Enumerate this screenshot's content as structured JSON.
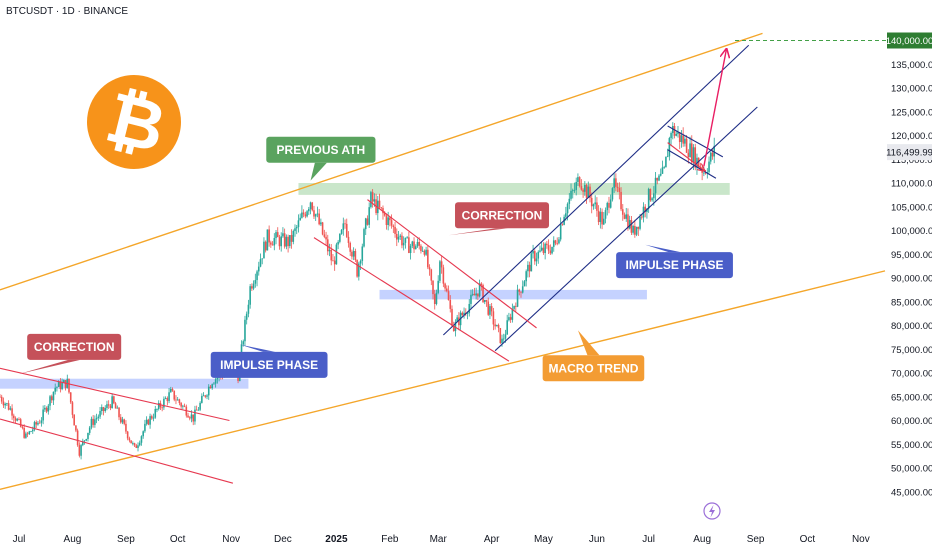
{
  "header": {
    "symbol_label": "BTCUSDT · 1D · BINANCE"
  },
  "colors": {
    "up": "#26a69a",
    "down": "#ef5350",
    "orange": "#f7931a",
    "orange_line": "#f4a62a",
    "navy": "#1f2e86",
    "red_line": "#e63950",
    "magenta": "#e91e63",
    "zone_green": "#a5d6a7",
    "zone_blue": "#9fb4ff",
    "label_red": "#c5515a",
    "label_green": "#5aa35f",
    "label_blue": "#4a5ec8",
    "label_orange": "#f39c33",
    "target_line": "#43a047",
    "target_badge": "#2e7d32"
  },
  "chart_data": {
    "type": "candlestick",
    "symbol": "BTCUSDT",
    "interval": "1D",
    "exchange": "BINANCE",
    "y_axis": {
      "scale": "linear",
      "ylim": [
        42000,
        146000
      ],
      "ticks": [
        45000,
        50000,
        55000,
        60000,
        65000,
        70000,
        75000,
        80000,
        85000,
        90000,
        95000,
        100000,
        105000,
        110000,
        115000,
        120000,
        125000,
        130000,
        135000
      ],
      "tick_labels": [
        "45,000.00",
        "50,000.00",
        "55,000.00",
        "60,000.00",
        "65,000.00",
        "70,000.00",
        "75,000.00",
        "80,000.00",
        "85,000.00",
        "90,000.00",
        "95,000.00",
        "100,000.00",
        "105,000.00",
        "110,000.00",
        "115,000.00",
        "120,000.00",
        "125,000.00",
        "130,000.00",
        "135,000.00"
      ]
    },
    "x_axis": {
      "range": [
        "2024-06-20",
        "2025-11-15"
      ],
      "tick_dates": [
        "2024-07-01",
        "2024-08-01",
        "2024-09-01",
        "2024-10-01",
        "2024-11-01",
        "2024-12-01",
        "2025-01-01",
        "2025-02-01",
        "2025-03-01",
        "2025-04-01",
        "2025-05-01",
        "2025-06-01",
        "2025-07-01",
        "2025-08-01",
        "2025-09-01",
        "2025-10-01",
        "2025-11-01"
      ],
      "tick_labels": [
        "Jul",
        "Aug",
        "Sep",
        "Oct",
        "Nov",
        "Dec",
        "2025",
        "Feb",
        "Mar",
        "Apr",
        "May",
        "Jun",
        "Jul",
        "Aug",
        "Sep",
        "Oct",
        "Nov"
      ]
    },
    "price_path": [
      [
        "2024-06-20",
        65000
      ],
      [
        "2024-06-27",
        62000
      ],
      [
        "2024-07-05",
        56500
      ],
      [
        "2024-07-14",
        60500
      ],
      [
        "2024-07-22",
        67000
      ],
      [
        "2024-07-29",
        68000
      ],
      [
        "2024-08-05",
        53500
      ],
      [
        "2024-08-12",
        59500
      ],
      [
        "2024-08-24",
        64000
      ],
      [
        "2024-09-06",
        54000
      ],
      [
        "2024-09-14",
        60000
      ],
      [
        "2024-09-27",
        65800
      ],
      [
        "2024-10-10",
        60500
      ],
      [
        "2024-10-21",
        68500
      ],
      [
        "2024-10-31",
        70500
      ],
      [
        "2024-11-05",
        69500
      ],
      [
        "2024-11-12",
        88000
      ],
      [
        "2024-11-22",
        98500
      ],
      [
        "2024-12-05",
        97500
      ],
      [
        "2024-12-17",
        106500
      ],
      [
        "2024-12-30",
        93000
      ],
      [
        "2025-01-06",
        101500
      ],
      [
        "2025-01-13",
        91500
      ],
      [
        "2025-01-21",
        106500
      ],
      [
        "2025-01-31",
        102000
      ],
      [
        "2025-02-10",
        97000
      ],
      [
        "2025-02-21",
        96500
      ],
      [
        "2025-02-27",
        84000
      ],
      [
        "2025-03-02",
        94000
      ],
      [
        "2025-03-10",
        79500
      ],
      [
        "2025-03-25",
        88000
      ],
      [
        "2025-04-07",
        76500
      ],
      [
        "2025-04-14",
        84500
      ],
      [
        "2025-04-25",
        94500
      ],
      [
        "2025-05-08",
        97000
      ],
      [
        "2025-05-13",
        104000
      ],
      [
        "2025-05-22",
        111000
      ],
      [
        "2025-06-05",
        101500
      ],
      [
        "2025-06-10",
        110000
      ],
      [
        "2025-06-22",
        99500
      ],
      [
        "2025-07-01",
        107000
      ],
      [
        "2025-07-10",
        112000
      ],
      [
        "2025-07-14",
        121500
      ],
      [
        "2025-07-22",
        118500
      ],
      [
        "2025-08-02",
        112500
      ],
      [
        "2025-08-08",
        116500
      ]
    ],
    "current_price": 116499.99,
    "current_price_label": "116,499.99",
    "target_price": 140000,
    "target_label": "140,000.00",
    "zones": [
      {
        "name": "previous-ath-zone",
        "color": "zone_green",
        "from": "2024-12-10",
        "to": "2025-08-17",
        "low": 107500,
        "high": 110000
      },
      {
        "name": "support-zone-mid",
        "color": "zone_blue",
        "from": "2025-01-26",
        "to": "2025-06-30",
        "low": 85500,
        "high": 87500
      },
      {
        "name": "support-zone-low",
        "color": "zone_blue",
        "from": "2024-06-20",
        "to": "2024-11-11",
        "low": 66700,
        "high": 68800
      }
    ],
    "lines": [
      {
        "name": "macro-trend-upper",
        "color": "orange_line",
        "from": [
          "2024-06-20",
          87500
        ],
        "to": [
          "2025-09-05",
          141500
        ]
      },
      {
        "name": "macro-trend-lower",
        "color": "orange_line",
        "from": [
          "2024-06-20",
          45500
        ],
        "to": [
          "2025-11-15",
          91500
        ]
      },
      {
        "name": "impulse-channel-upper",
        "color": "navy",
        "from": [
          "2025-03-04",
          78000
        ],
        "to": [
          "2025-08-28",
          139000
        ]
      },
      {
        "name": "impulse-channel-lower",
        "color": "navy",
        "from": [
          "2025-04-03",
          74700
        ],
        "to": [
          "2025-09-02",
          126000
        ]
      },
      {
        "name": "correction-1-upper",
        "color": "red_line",
        "from": [
          "2024-06-20",
          71000
        ],
        "to": [
          "2024-10-31",
          60000
        ]
      },
      {
        "name": "correction-1-lower",
        "color": "red_line",
        "from": [
          "2024-06-20",
          60300
        ],
        "to": [
          "2024-11-02",
          46800
        ]
      },
      {
        "name": "correction-2-upper",
        "color": "red_line",
        "from": [
          "2025-01-19",
          106500
        ],
        "to": [
          "2025-04-27",
          79500
        ]
      },
      {
        "name": "correction-2-lower",
        "color": "red_line",
        "from": [
          "2024-12-19",
          98500
        ],
        "to": [
          "2025-04-11",
          72500
        ]
      },
      {
        "name": "flag-upper",
        "color": "navy",
        "from": [
          "2025-07-12",
          122000
        ],
        "to": [
          "2025-08-13",
          115500
        ]
      },
      {
        "name": "flag-lower",
        "color": "navy",
        "from": [
          "2025-07-12",
          117000
        ],
        "to": [
          "2025-08-09",
          111000
        ]
      },
      {
        "name": "flag-pullback-arrow",
        "color": "red_line",
        "from": [
          "2025-07-12",
          118500
        ],
        "to": [
          "2025-08-02",
          112700
        ]
      },
      {
        "name": "projection-arrow",
        "color": "magenta",
        "from": [
          "2025-08-02",
          113500
        ],
        "to": [
          "2025-08-15",
          138000
        ]
      }
    ],
    "annotations": [
      {
        "text": "CORRECTION",
        "color": "label_red",
        "at": [
          "2024-08-02",
          75500
        ],
        "pointer_to": [
          "2024-07-01",
          69800
        ]
      },
      {
        "text": "PREVIOUS ATH",
        "color": "label_green",
        "at": [
          "2024-12-23",
          117000
        ],
        "pointer_to": [
          "2024-12-17",
          110500
        ]
      },
      {
        "text": "CORRECTION",
        "color": "label_red",
        "at": [
          "2025-04-07",
          103200
        ],
        "pointer_to": [
          "2025-03-07",
          99000
        ]
      },
      {
        "text": "IMPULSE PHASE",
        "color": "label_blue",
        "at": [
          "2024-11-23",
          71700
        ],
        "pointer_to": [
          "2024-11-06",
          76000
        ]
      },
      {
        "text": "IMPULSE PHASE",
        "color": "label_blue",
        "at": [
          "2025-07-16",
          92700
        ],
        "pointer_to": [
          "2025-06-29",
          97000
        ]
      },
      {
        "text": "MACRO TREND",
        "color": "label_orange",
        "at": [
          "2025-05-30",
          71000
        ],
        "pointer_to": [
          "2025-05-21",
          79000
        ]
      }
    ]
  }
}
